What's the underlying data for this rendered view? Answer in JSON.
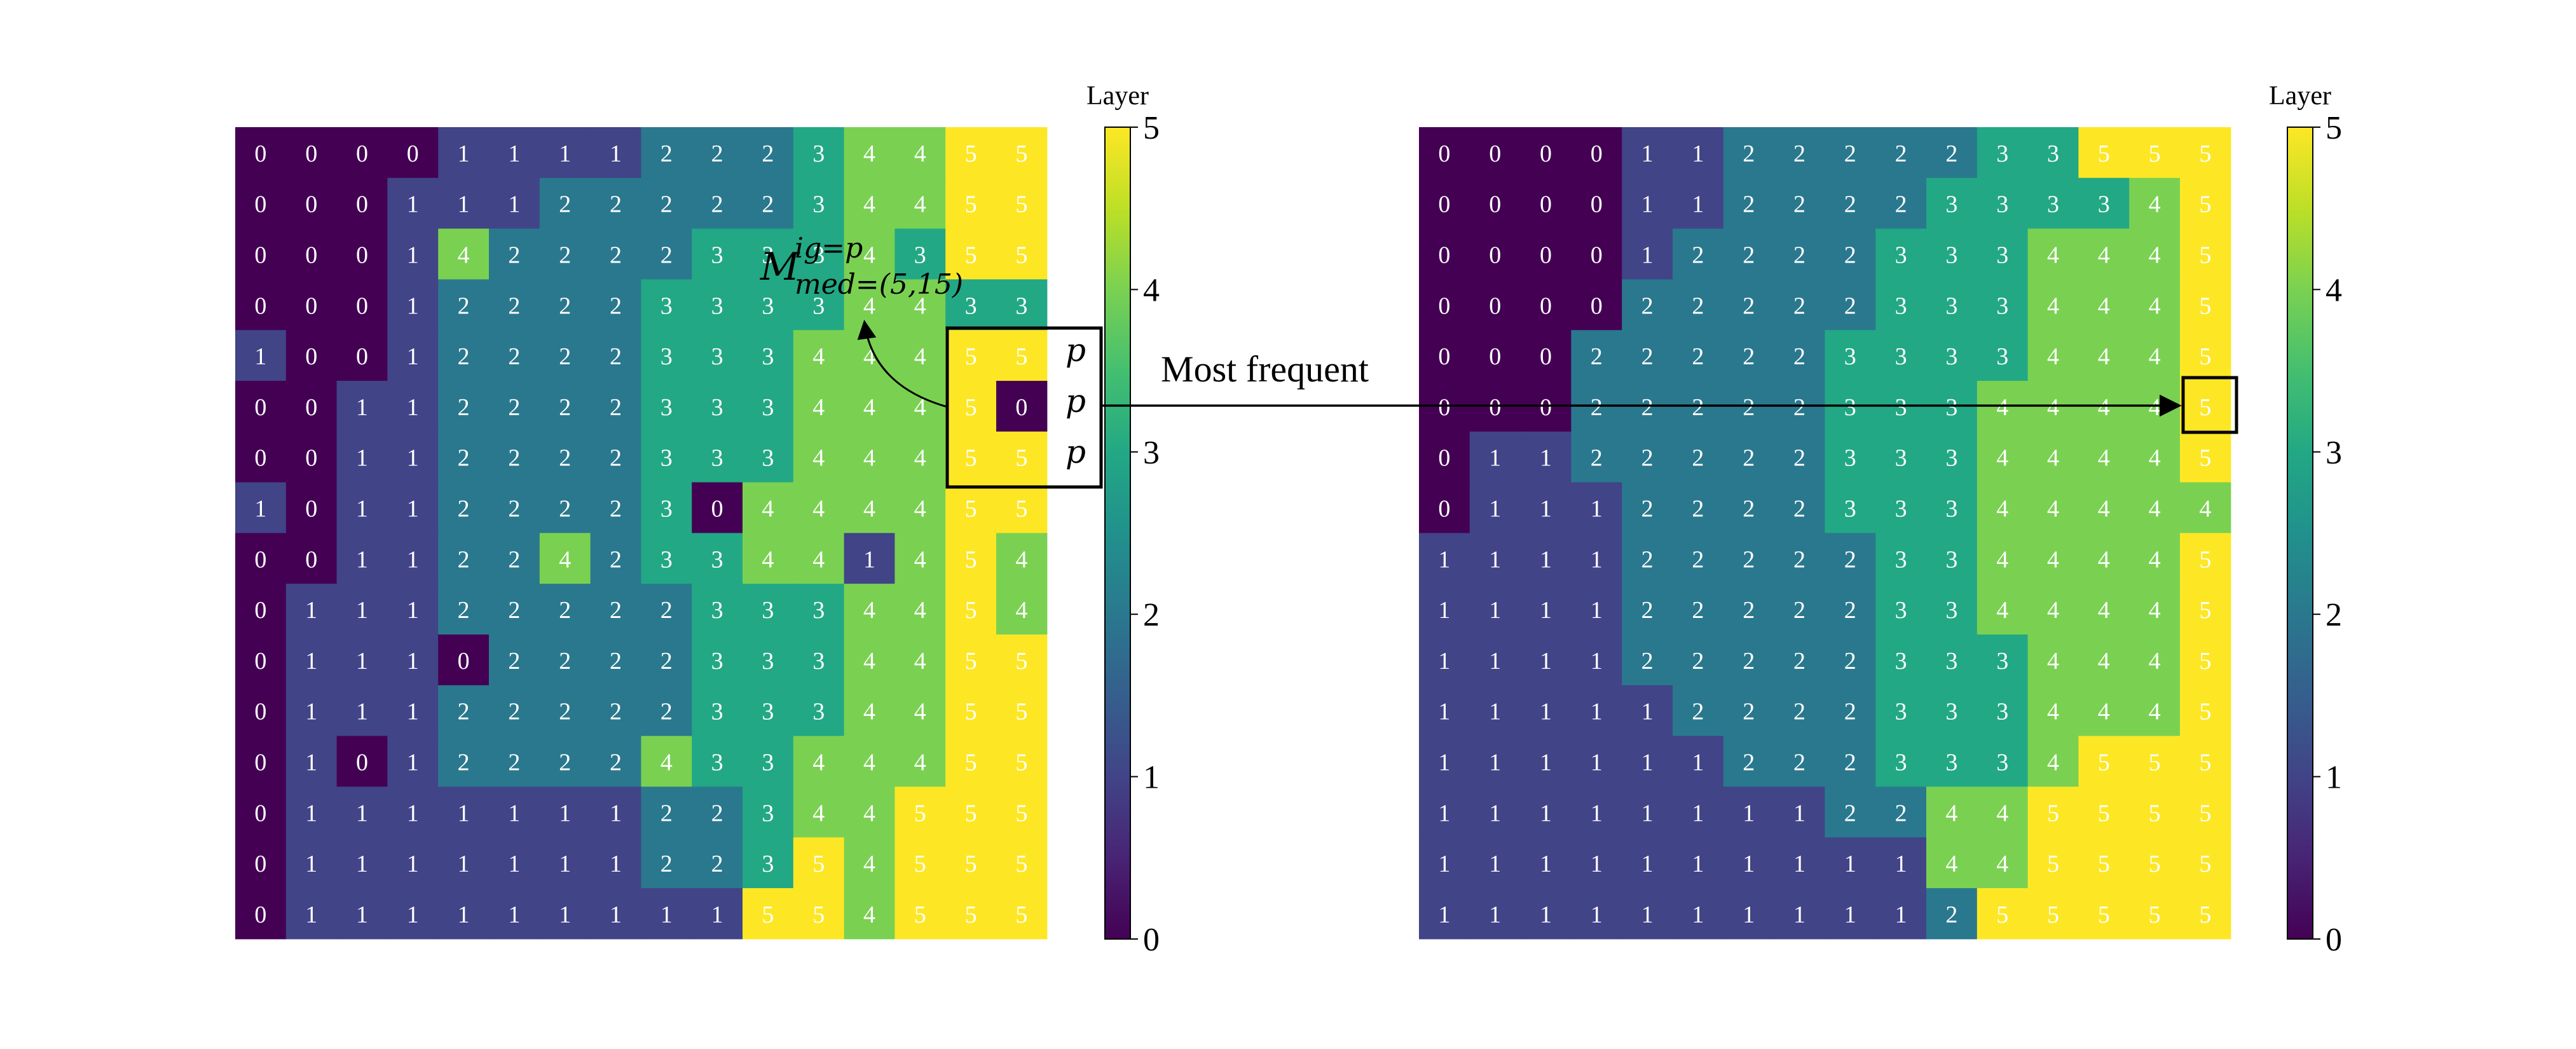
{
  "chart_data": [
    {
      "type": "heatmap",
      "title": "",
      "xlabel": "",
      "ylabel": "",
      "colormap": "viridis",
      "vmin": 0,
      "vmax": 5,
      "colorbar": {
        "label": "Layer",
        "ticks": [
          "0",
          "1",
          "2",
          "3",
          "4",
          "5"
        ]
      },
      "rows": [
        [
          0,
          0,
          0,
          0,
          1,
          1,
          1,
          1,
          2,
          2,
          2,
          3,
          4,
          4,
          5,
          5
        ],
        [
          0,
          0,
          0,
          1,
          1,
          1,
          2,
          2,
          2,
          2,
          2,
          3,
          4,
          4,
          5,
          5
        ],
        [
          0,
          0,
          0,
          1,
          4,
          2,
          2,
          2,
          2,
          3,
          3,
          3,
          4,
          3,
          5,
          5
        ],
        [
          0,
          0,
          0,
          1,
          2,
          2,
          2,
          2,
          3,
          3,
          3,
          3,
          4,
          4,
          3,
          3
        ],
        [
          1,
          0,
          0,
          1,
          2,
          2,
          2,
          2,
          3,
          3,
          3,
          4,
          4,
          4,
          5,
          5
        ],
        [
          0,
          0,
          1,
          1,
          2,
          2,
          2,
          2,
          3,
          3,
          3,
          4,
          4,
          4,
          5,
          0
        ],
        [
          0,
          0,
          1,
          1,
          2,
          2,
          2,
          2,
          3,
          3,
          3,
          4,
          4,
          4,
          5,
          5
        ],
        [
          1,
          0,
          1,
          1,
          2,
          2,
          2,
          2,
          3,
          0,
          4,
          4,
          4,
          4,
          5,
          5
        ],
        [
          0,
          0,
          1,
          1,
          2,
          2,
          4,
          2,
          3,
          3,
          4,
          4,
          1,
          4,
          5,
          4
        ],
        [
          0,
          1,
          1,
          1,
          2,
          2,
          2,
          2,
          2,
          3,
          3,
          3,
          4,
          4,
          5,
          4
        ],
        [
          0,
          1,
          1,
          1,
          0,
          2,
          2,
          2,
          2,
          3,
          3,
          3,
          4,
          4,
          5,
          5
        ],
        [
          0,
          1,
          1,
          1,
          2,
          2,
          2,
          2,
          2,
          3,
          3,
          3,
          4,
          4,
          5,
          5
        ],
        [
          0,
          1,
          0,
          1,
          2,
          2,
          2,
          2,
          4,
          3,
          3,
          4,
          4,
          4,
          5,
          5
        ],
        [
          0,
          1,
          1,
          1,
          1,
          1,
          1,
          1,
          2,
          2,
          3,
          4,
          4,
          5,
          5,
          5
        ],
        [
          0,
          1,
          1,
          1,
          1,
          1,
          1,
          1,
          2,
          2,
          3,
          5,
          4,
          5,
          5,
          5
        ],
        [
          0,
          1,
          1,
          1,
          1,
          1,
          1,
          1,
          1,
          1,
          5,
          5,
          4,
          5,
          5,
          5
        ]
      ]
    },
    {
      "type": "heatmap",
      "title": "",
      "xlabel": "",
      "ylabel": "",
      "colormap": "viridis",
      "vmin": 0,
      "vmax": 5,
      "colorbar": {
        "label": "Layer",
        "ticks": [
          "0",
          "1",
          "2",
          "3",
          "4",
          "5"
        ]
      },
      "rows": [
        [
          0,
          0,
          0,
          0,
          1,
          1,
          2,
          2,
          2,
          2,
          2,
          3,
          3,
          5,
          5,
          5
        ],
        [
          0,
          0,
          0,
          0,
          1,
          1,
          2,
          2,
          2,
          2,
          3,
          3,
          3,
          3,
          4,
          5
        ],
        [
          0,
          0,
          0,
          0,
          1,
          2,
          2,
          2,
          2,
          3,
          3,
          3,
          4,
          4,
          4,
          5
        ],
        [
          0,
          0,
          0,
          0,
          2,
          2,
          2,
          2,
          2,
          3,
          3,
          3,
          4,
          4,
          4,
          5
        ],
        [
          0,
          0,
          0,
          2,
          2,
          2,
          2,
          2,
          3,
          3,
          3,
          3,
          4,
          4,
          4,
          5
        ],
        [
          0,
          0,
          0,
          2,
          2,
          2,
          2,
          2,
          3,
          3,
          3,
          4,
          4,
          4,
          4,
          5
        ],
        [
          0,
          1,
          1,
          2,
          2,
          2,
          2,
          2,
          3,
          3,
          3,
          4,
          4,
          4,
          4,
          5
        ],
        [
          0,
          1,
          1,
          1,
          2,
          2,
          2,
          2,
          3,
          3,
          3,
          4,
          4,
          4,
          4,
          4
        ],
        [
          1,
          1,
          1,
          1,
          2,
          2,
          2,
          2,
          2,
          3,
          3,
          4,
          4,
          4,
          4,
          5
        ],
        [
          1,
          1,
          1,
          1,
          2,
          2,
          2,
          2,
          2,
          3,
          3,
          4,
          4,
          4,
          4,
          5
        ],
        [
          1,
          1,
          1,
          1,
          2,
          2,
          2,
          2,
          2,
          3,
          3,
          3,
          4,
          4,
          4,
          5
        ],
        [
          1,
          1,
          1,
          1,
          1,
          2,
          2,
          2,
          2,
          3,
          3,
          3,
          4,
          4,
          4,
          5
        ],
        [
          1,
          1,
          1,
          1,
          1,
          1,
          2,
          2,
          2,
          3,
          3,
          3,
          4,
          5,
          5,
          5
        ],
        [
          1,
          1,
          1,
          1,
          1,
          1,
          1,
          1,
          2,
          2,
          4,
          4,
          5,
          5,
          5,
          5
        ],
        [
          1,
          1,
          1,
          1,
          1,
          1,
          1,
          1,
          1,
          1,
          4,
          4,
          5,
          5,
          5,
          5
        ],
        [
          1,
          1,
          1,
          1,
          1,
          1,
          1,
          1,
          1,
          1,
          2,
          5,
          5,
          5,
          5,
          5
        ]
      ]
    }
  ],
  "annotations": {
    "window_symbols": [
      "p",
      "p",
      "p"
    ],
    "window_center_value": "0",
    "formula": {
      "base": "M",
      "superscript": "ig=p",
      "subscript": "med=(5,15)"
    },
    "arrow_label": "Most frequent",
    "highlighted_value": "5"
  }
}
